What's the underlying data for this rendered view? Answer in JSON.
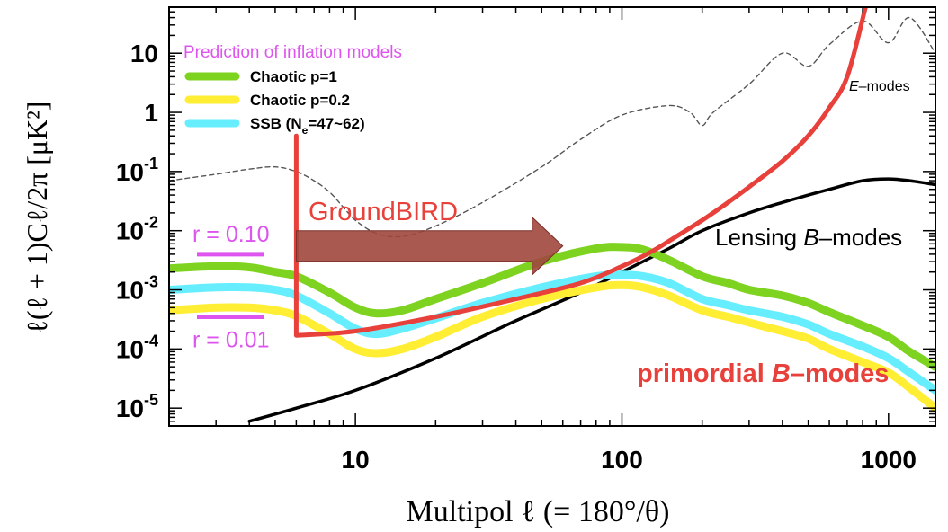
{
  "chart_data": {
    "type": "line",
    "title": "",
    "xlabel": "Multipol  ℓ  (= 180°/θ)",
    "ylabel": "ℓ(ℓ + 1)Cℓ/2π [μK²]",
    "x_scale": "log",
    "y_scale": "log",
    "xlim": [
      2,
      1500
    ],
    "ylim": [
      5e-06,
      60
    ],
    "x_ticks": [
      {
        "value": 10,
        "label": "10"
      },
      {
        "value": 100,
        "label": "100"
      },
      {
        "value": 1000,
        "label": "1000"
      }
    ],
    "y_ticks": [
      {
        "value": 1e-05,
        "base": "10",
        "exp": "-5"
      },
      {
        "value": 0.0001,
        "base": "10",
        "exp": "-4"
      },
      {
        "value": 0.001,
        "base": "10",
        "exp": "-3"
      },
      {
        "value": 0.01,
        "base": "10",
        "exp": "-2"
      },
      {
        "value": 0.1,
        "base": "10",
        "exp": "-1"
      },
      {
        "value": 1,
        "base": "1",
        "exp": ""
      },
      {
        "value": 10,
        "base": "10",
        "exp": ""
      }
    ],
    "legend": {
      "title": "Prediction of inflation models",
      "position": "top-left",
      "entries": [
        {
          "label": "Chaotic p=1",
          "color": "#7ed321"
        },
        {
          "label": "Chaotic p=0.2",
          "color": "#ffee33"
        },
        {
          "label_main": "SSB (N",
          "label_sub": "e",
          "label_tail": "=47~62)",
          "color": "#66eeff"
        }
      ]
    },
    "series": [
      {
        "key": "emodes",
        "color": "#555555",
        "dashed": true,
        "x": [
          2,
          3,
          4,
          5,
          6,
          7,
          8,
          9,
          10,
          12,
          15,
          20,
          30,
          50,
          70,
          100,
          150,
          180,
          200,
          220,
          300,
          400,
          500,
          600,
          800,
          1000,
          1200,
          1500
        ],
        "y": [
          0.07,
          0.09,
          0.11,
          0.12,
          0.1,
          0.07,
          0.045,
          0.025,
          0.015,
          0.009,
          0.008,
          0.012,
          0.03,
          0.12,
          0.35,
          0.9,
          1.3,
          1,
          0.6,
          1,
          3,
          10,
          6,
          14,
          35,
          15,
          40,
          10
        ]
      },
      {
        "key": "lensing",
        "color": "#000000",
        "dashed": false,
        "x": [
          4,
          6,
          10,
          20,
          40,
          70,
          100,
          150,
          200,
          300,
          400,
          600,
          800,
          1000,
          1200,
          1500
        ],
        "y": [
          6e-06,
          1e-05,
          2e-05,
          7e-05,
          0.0003,
          0.0009,
          0.002,
          0.005,
          0.01,
          0.02,
          0.03,
          0.05,
          0.07,
          0.075,
          0.07,
          0.06
        ]
      },
      {
        "key": "ssb",
        "color": "#66eeff",
        "dashed": false,
        "x": [
          2,
          3,
          4,
          5,
          6,
          8,
          10,
          12,
          15,
          20,
          30,
          50,
          80,
          100,
          120,
          150,
          200,
          250,
          300,
          400,
          500,
          600,
          800,
          1000,
          1200,
          1500
        ],
        "y": [
          0.001,
          0.0011,
          0.0011,
          0.001,
          0.0008,
          0.0004,
          0.00022,
          0.00018,
          0.00022,
          0.00033,
          0.0006,
          0.0011,
          0.0017,
          0.0018,
          0.0017,
          0.0013,
          0.0007,
          0.00055,
          0.00045,
          0.00035,
          0.00026,
          0.00018,
          0.00011,
          7e-05,
          4e-05,
          2e-05
        ]
      },
      {
        "key": "p02",
        "color": "#ffee33",
        "dashed": false,
        "x": [
          2,
          3,
          4,
          5,
          6,
          8,
          10,
          12,
          15,
          20,
          30,
          50,
          80,
          100,
          120,
          150,
          200,
          250,
          300,
          400,
          500,
          600,
          800,
          1000,
          1200,
          1500
        ],
        "y": [
          0.00045,
          0.0005,
          0.0005,
          0.00045,
          0.00036,
          0.00018,
          0.0001,
          8.5e-05,
          0.0001,
          0.00016,
          0.00035,
          0.0007,
          0.0011,
          0.0012,
          0.0011,
          0.0008,
          0.00045,
          0.00035,
          0.00028,
          0.0002,
          0.00015,
          0.0001,
          6e-05,
          4e-05,
          2.2e-05,
          1e-05
        ]
      },
      {
        "key": "p1",
        "color": "#7ed321",
        "dashed": false,
        "x": [
          2,
          3,
          4,
          5,
          6,
          8,
          10,
          12,
          15,
          20,
          30,
          50,
          80,
          100,
          120,
          150,
          200,
          250,
          300,
          400,
          500,
          600,
          800,
          1000,
          1200,
          1500
        ],
        "y": [
          0.0023,
          0.0025,
          0.0024,
          0.002,
          0.0017,
          0.0009,
          0.0005,
          0.0004,
          0.00045,
          0.0007,
          0.0013,
          0.003,
          0.005,
          0.0053,
          0.0048,
          0.0032,
          0.0017,
          0.0013,
          0.001,
          0.0008,
          0.0006,
          0.00042,
          0.00025,
          0.00016,
          9e-05,
          5e-05
        ]
      },
      {
        "key": "groundbird",
        "color": "#e8403a",
        "dashed": false,
        "x": [
          6,
          6,
          10,
          20,
          40,
          70,
          100,
          130,
          160,
          200,
          250,
          300,
          400,
          500,
          600,
          700,
          820
        ],
        "y": [
          0.4,
          0.00017,
          0.0002,
          0.00035,
          0.0007,
          0.0013,
          0.0025,
          0.0045,
          0.008,
          0.015,
          0.03,
          0.055,
          0.15,
          0.4,
          1.2,
          4,
          60
        ]
      }
    ],
    "annotations": [
      {
        "key": "emodes",
        "text_italic": "E",
        "text": "–modes",
        "color": "#000000"
      },
      {
        "key": "lensing",
        "text": "Lensing ",
        "text_italic": "B",
        "text_tail": "–modes",
        "color": "#000000"
      },
      {
        "key": "primordial",
        "text": "primordial ",
        "text_italic": "B",
        "text_tail": "–modes",
        "color": "#e8403a"
      },
      {
        "key": "groundbird",
        "text": "GroundBIRD",
        "color": "#e8403a"
      },
      {
        "key": "r010",
        "text": "r = 0.10",
        "color": "#dd55ee",
        "level": 0.004
      },
      {
        "key": "r001",
        "text": "r = 0.01",
        "color": "#dd55ee",
        "level": 0.00035
      }
    ],
    "arrow": {
      "color": "#a0473d",
      "x_start": 6,
      "x_end": 60,
      "y": 0.0055
    },
    "grid": false
  }
}
